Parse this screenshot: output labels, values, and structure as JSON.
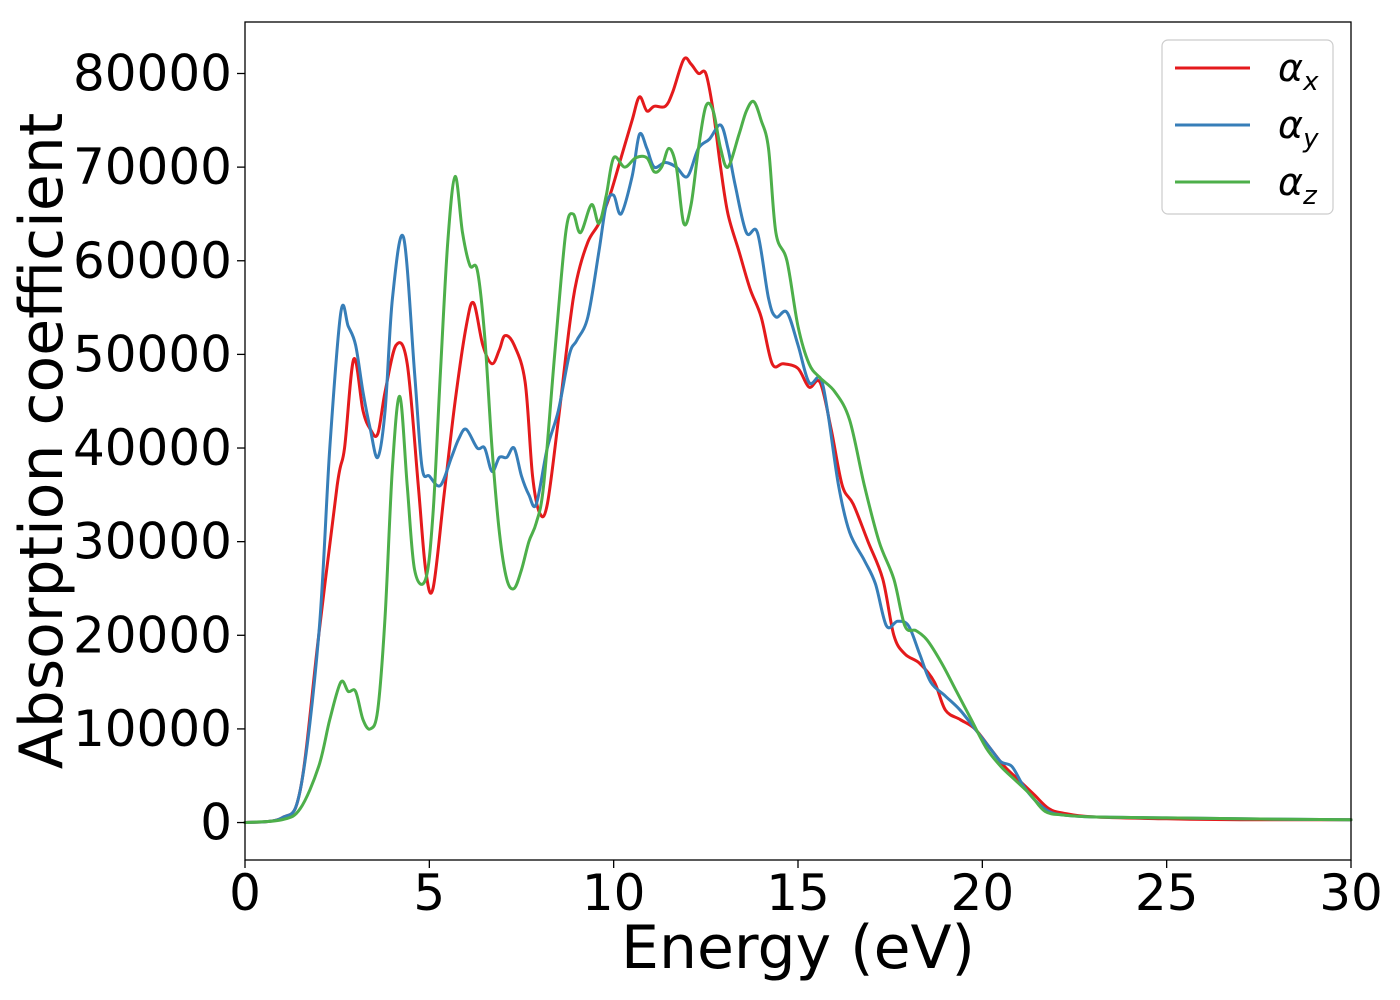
{
  "chart_data": {
    "type": "line",
    "xlabel": "Energy (eV)",
    "ylabel": "Absorption coefficient",
    "xlim": [
      0,
      30
    ],
    "ylim": [
      -4000,
      85500
    ],
    "xticks": [
      0,
      5,
      10,
      15,
      20,
      25,
      30
    ],
    "yticks": [
      0,
      10000,
      20000,
      30000,
      40000,
      50000,
      60000,
      70000,
      80000
    ],
    "grid": false,
    "legend": "top-right",
    "legend_entries": [
      {
        "symbol": "α",
        "subscript": "x"
      },
      {
        "symbol": "α",
        "subscript": "y"
      },
      {
        "symbol": "α",
        "subscript": "z"
      }
    ],
    "series": [
      {
        "color": "#e41a1c",
        "x": [
          0,
          1,
          1.5,
          2,
          2.5,
          2.7,
          2.95,
          3.2,
          3.4,
          3.6,
          3.8,
          4.1,
          4.4,
          4.7,
          4.9,
          5.1,
          5.4,
          5.7,
          6.0,
          6.2,
          6.45,
          6.7,
          6.9,
          7.05,
          7.3,
          7.6,
          7.8,
          8.0,
          8.2,
          8.5,
          8.8,
          9.0,
          9.3,
          9.6,
          9.9,
          10.2,
          10.5,
          10.7,
          10.9,
          11.1,
          11.4,
          11.6,
          11.9,
          12.1,
          12.3,
          12.5,
          12.7,
          12.9,
          13.1,
          13.4,
          13.7,
          14.0,
          14.3,
          14.6,
          15.0,
          15.3,
          15.6,
          15.9,
          16.2,
          16.5,
          16.9,
          17.3,
          17.6,
          17.9,
          18.3,
          18.7,
          19.0,
          19.4,
          19.8,
          20.2,
          20.6,
          21.0,
          21.4,
          21.8,
          22.2,
          23,
          25,
          27,
          30
        ],
        "y": [
          0,
          500,
          3500,
          20000,
          36000,
          40000,
          49500,
          44000,
          42000,
          41500,
          46000,
          51000,
          49000,
          36000,
          27000,
          25000,
          35000,
          45000,
          53000,
          55500,
          51000,
          49000,
          50500,
          52000,
          51000,
          47000,
          37000,
          33000,
          34000,
          43000,
          53000,
          58000,
          62000,
          64000,
          67000,
          71000,
          75000,
          77500,
          76000,
          76500,
          76500,
          78000,
          81500,
          81000,
          80000,
          80000,
          76000,
          70000,
          65000,
          61000,
          57000,
          54000,
          49000,
          49000,
          48500,
          46500,
          47000,
          42000,
          36000,
          34000,
          30000,
          26000,
          20000,
          18000,
          17000,
          15000,
          12000,
          11000,
          10000,
          8000,
          6000,
          4500,
          3000,
          1500,
          1000,
          600,
          400,
          300,
          300
        ]
      },
      {
        "color": "#377eb8",
        "x": [
          0,
          1,
          1.5,
          2,
          2.3,
          2.6,
          2.8,
          3.0,
          3.2,
          3.4,
          3.6,
          3.8,
          4.0,
          4.3,
          4.6,
          4.8,
          5.0,
          5.3,
          5.6,
          5.8,
          6.0,
          6.3,
          6.5,
          6.7,
          6.9,
          7.1,
          7.3,
          7.5,
          7.7,
          7.9,
          8.2,
          8.5,
          8.8,
          9.0,
          9.3,
          9.6,
          9.8,
          10.0,
          10.2,
          10.5,
          10.7,
          10.9,
          11.1,
          11.4,
          11.7,
          12.0,
          12.3,
          12.6,
          12.9,
          13.1,
          13.3,
          13.6,
          13.9,
          14.2,
          14.4,
          14.7,
          15.0,
          15.3,
          15.6,
          15.8,
          16.1,
          16.4,
          16.8,
          17.1,
          17.4,
          17.7,
          18.0,
          18.3,
          18.6,
          19.0,
          19.4,
          19.8,
          20.2,
          20.5,
          20.8,
          21.1,
          21.4,
          21.8,
          22.2,
          23,
          25,
          27,
          30
        ],
        "y": [
          0,
          500,
          3500,
          20000,
          40000,
          54500,
          53000,
          51000,
          46000,
          42000,
          39000,
          44000,
          56000,
          62500,
          48000,
          38000,
          37000,
          36000,
          39000,
          41000,
          42000,
          40000,
          40000,
          37500,
          39000,
          39000,
          40000,
          37000,
          35000,
          34000,
          40000,
          44000,
          50000,
          51500,
          54000,
          61000,
          66000,
          67000,
          65000,
          69000,
          73500,
          72000,
          70000,
          70500,
          70000,
          69000,
          72000,
          73000,
          74500,
          72000,
          68000,
          63000,
          63000,
          56000,
          54000,
          54500,
          51000,
          47000,
          47500,
          44000,
          36000,
          31000,
          28000,
          25500,
          21000,
          21500,
          21000,
          18000,
          15000,
          13500,
          12000,
          10000,
          8000,
          6500,
          6000,
          4000,
          2500,
          1200,
          800,
          600,
          500,
          400,
          300
        ]
      },
      {
        "color": "#4daf4a",
        "x": [
          0,
          1,
          1.5,
          2,
          2.3,
          2.6,
          2.8,
          3.0,
          3.2,
          3.4,
          3.6,
          3.8,
          4.0,
          4.2,
          4.4,
          4.6,
          4.9,
          5.1,
          5.3,
          5.5,
          5.7,
          5.9,
          6.1,
          6.3,
          6.5,
          6.7,
          6.9,
          7.1,
          7.3,
          7.5,
          7.7,
          7.9,
          8.1,
          8.4,
          8.7,
          8.9,
          9.1,
          9.4,
          9.6,
          9.8,
          10.0,
          10.3,
          10.6,
          10.9,
          11.1,
          11.3,
          11.5,
          11.7,
          11.9,
          12.1,
          12.3,
          12.5,
          12.7,
          12.9,
          13.1,
          13.4,
          13.6,
          13.8,
          14.0,
          14.2,
          14.4,
          14.7,
          15.0,
          15.3,
          15.6,
          16.0,
          16.4,
          16.8,
          17.2,
          17.6,
          17.9,
          18.2,
          18.5,
          18.9,
          19.3,
          19.7,
          20.1,
          20.5,
          20.9,
          21.3,
          21.7,
          22.2,
          23,
          25,
          27,
          30
        ],
        "y": [
          0,
          300,
          1500,
          6000,
          11000,
          15000,
          14000,
          14000,
          11000,
          10000,
          12000,
          22000,
          38000,
          45500,
          36000,
          27000,
          26000,
          33000,
          48000,
          62000,
          69000,
          63000,
          59500,
          59000,
          52000,
          40000,
          31000,
          26000,
          25000,
          27000,
          30000,
          32000,
          36000,
          50000,
          63000,
          65000,
          63000,
          66000,
          64000,
          67000,
          71000,
          70000,
          71000,
          71000,
          69500,
          70000,
          72000,
          70000,
          64000,
          66000,
          72000,
          76500,
          76000,
          72000,
          70000,
          73500,
          76000,
          77000,
          75000,
          72000,
          63000,
          60000,
          53000,
          49000,
          47500,
          46000,
          43000,
          36000,
          30000,
          26000,
          21000,
          20500,
          19500,
          17000,
          14000,
          11000,
          8000,
          6000,
          4500,
          3000,
          1200,
          800,
          600,
          500,
          400,
          300
        ]
      }
    ]
  }
}
